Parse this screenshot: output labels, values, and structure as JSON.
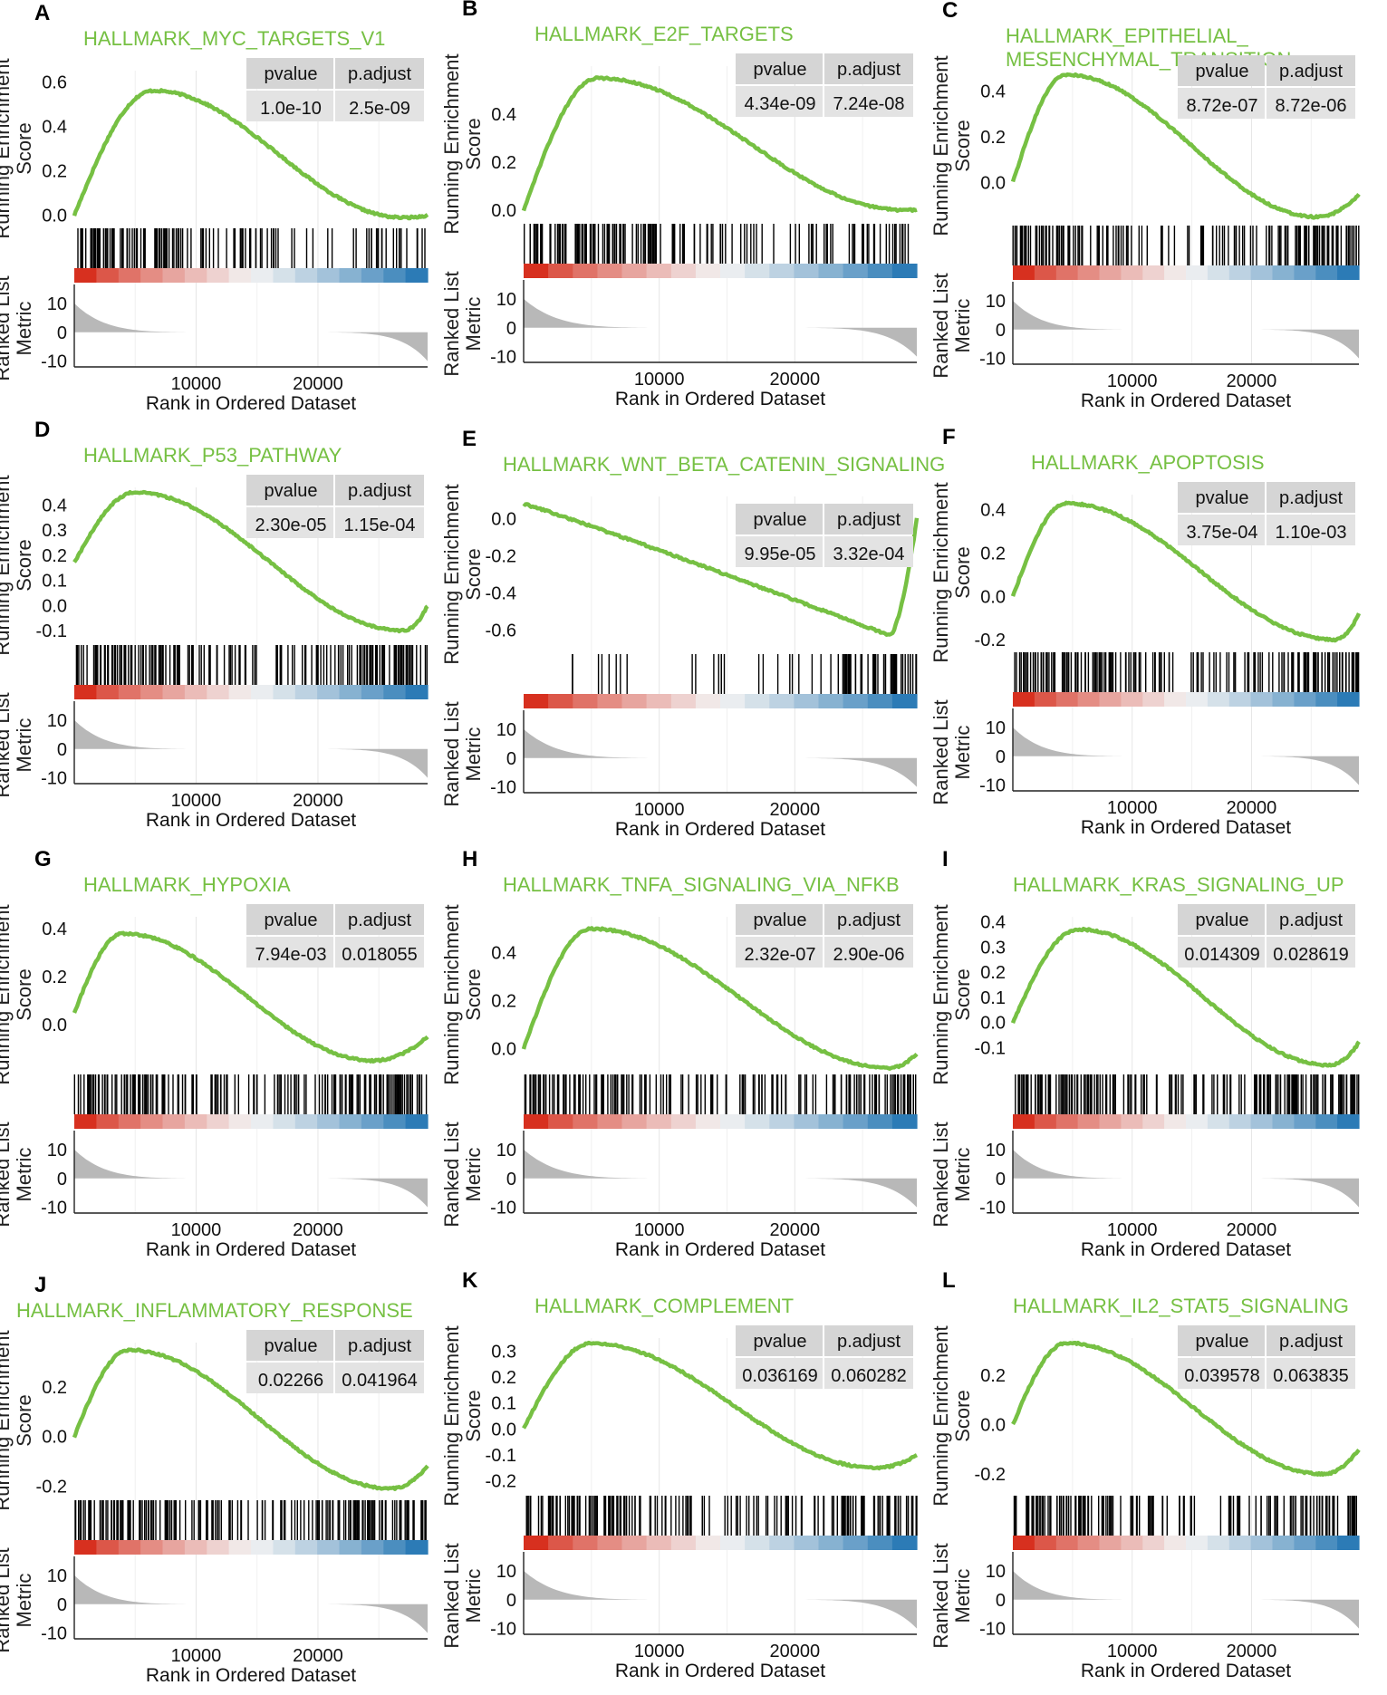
{
  "figure": {
    "x_axis_label": "Rank in Ordered Dataset",
    "y_axis_label_top_line1": "Running Enrichment",
    "y_axis_label_top_line2": "Score",
    "y_axis_label_bottom_line1": "Ranked List",
    "y_axis_label_bottom_line2": "Metric",
    "table_headers": [
      "pvalue",
      "p.adjust"
    ],
    "colors": {
      "curve": "#76c043",
      "title": "#76c043",
      "hit": "#000000",
      "metric_fill": "#b8b8b8",
      "table_bg": "#e3e3e3",
      "heat_red": "#d7301f",
      "heat_white": "#f2f2f2",
      "heat_blue": "#2c7bb6"
    }
  },
  "chart_data": [
    {
      "panel": "A",
      "title": "HALLMARK_MYC_TARGETS_V1",
      "title_line2": "",
      "type": "line",
      "pvalue": "1.0e-10",
      "p_adjust": "2.5e-09",
      "es_ticks": [
        "0.0",
        "0.2",
        "0.4",
        "0.6"
      ],
      "es_tick_values": [
        0.0,
        0.2,
        0.4,
        0.6
      ],
      "es_ylim": [
        -0.05,
        0.65
      ],
      "es_start": 0.0,
      "es_end": 0.0,
      "es_peak": 0.56,
      "peak_rank": 6500,
      "es_min": -0.01,
      "min_rank": 27000,
      "xlim": [
        0,
        29000
      ],
      "x_ticks": [
        "10000",
        "20000"
      ],
      "x_tick_values": [
        10000,
        20000
      ],
      "metric_ticks": [
        "10",
        "0",
        "-10"
      ],
      "metric_tick_values": [
        10,
        0,
        -10
      ],
      "hit_density": [
        "high",
        "high",
        "high",
        "medium",
        "medium",
        "medium",
        "low",
        "low",
        "medium",
        "medium"
      ]
    },
    {
      "panel": "B",
      "title": "HALLMARK_E2F_TARGETS",
      "title_line2": "",
      "type": "line",
      "pvalue": "4.34e-09",
      "p_adjust": "7.24e-08",
      "es_ticks": [
        "0.0",
        "0.2",
        "0.4"
      ],
      "es_tick_values": [
        0.0,
        0.2,
        0.4
      ],
      "es_ylim": [
        -0.05,
        0.6
      ],
      "es_start": 0.0,
      "es_end": 0.0,
      "es_peak": 0.55,
      "peak_rank": 5500,
      "es_min": 0.0,
      "min_rank": 28000,
      "xlim": [
        0,
        29000
      ],
      "x_ticks": [
        "10000",
        "20000"
      ],
      "x_tick_values": [
        10000,
        20000
      ],
      "metric_ticks": [
        "10",
        "0",
        "-10"
      ],
      "metric_tick_values": [
        10,
        0,
        -10
      ],
      "hit_density": [
        "high",
        "high",
        "high",
        "high",
        "medium",
        "medium",
        "low",
        "medium",
        "medium",
        "medium"
      ]
    },
    {
      "panel": "C",
      "title": "HALLMARK_EPITHELIAL_",
      "title_line2": "MESENCHYMAL_TRANSITION",
      "type": "line",
      "pvalue": "8.72e-07",
      "p_adjust": "8.72e-06",
      "es_ticks": [
        "0.0",
        "0.2",
        "0.4"
      ],
      "es_tick_values": [
        0.0,
        0.2,
        0.4
      ],
      "es_ylim": [
        -0.18,
        0.5
      ],
      "es_start": 0.0,
      "es_end": -0.05,
      "es_peak": 0.47,
      "peak_rank": 4500,
      "es_min": -0.15,
      "min_rank": 25500,
      "xlim": [
        0,
        29000
      ],
      "x_ticks": [
        "10000",
        "20000"
      ],
      "x_tick_values": [
        10000,
        20000
      ],
      "metric_ticks": [
        "10",
        "0",
        "-10"
      ],
      "metric_tick_values": [
        10,
        0,
        -10
      ],
      "hit_density": [
        "high",
        "high",
        "medium",
        "medium",
        "low",
        "medium",
        "medium",
        "medium",
        "high",
        "high"
      ]
    },
    {
      "panel": "D",
      "title": "HALLMARK_P53_PATHWAY",
      "title_line2": "",
      "type": "line",
      "pvalue": "2.30e-05",
      "p_adjust": "1.15e-04",
      "es_ticks": [
        "-0.1",
        "0.0",
        "0.1",
        "0.2",
        "0.3",
        "0.4"
      ],
      "es_tick_values": [
        -0.1,
        0.0,
        0.1,
        0.2,
        0.3,
        0.4
      ],
      "es_ylim": [
        -0.15,
        0.47
      ],
      "es_start": 0.17,
      "es_end": 0.0,
      "es_peak": 0.45,
      "peak_rank": 5000,
      "es_min": -0.1,
      "min_rank": 27000,
      "xlim": [
        0,
        29000
      ],
      "x_ticks": [
        "10000",
        "20000"
      ],
      "x_tick_values": [
        10000,
        20000
      ],
      "metric_ticks": [
        "10",
        "0",
        "-10"
      ],
      "metric_tick_values": [
        10,
        0,
        -10
      ],
      "hit_density": [
        "high",
        "high",
        "high",
        "medium",
        "medium",
        "medium",
        "medium",
        "medium",
        "high",
        "high"
      ]
    },
    {
      "panel": "E",
      "title": "HALLMARK_WNT_BETA_CATENIN_SIGNALING",
      "title_line2": "",
      "type": "line",
      "pvalue": "9.95e-05",
      "p_adjust": "3.32e-04",
      "es_ticks": [
        "-0.6",
        "-0.4",
        "-0.2",
        "0.0"
      ],
      "es_tick_values": [
        -0.6,
        -0.4,
        -0.2,
        0.0
      ],
      "es_ylim": [
        -0.72,
        0.12
      ],
      "es_start": 0.08,
      "es_end": 0.0,
      "es_peak": 0.08,
      "peak_rank": 0,
      "es_min": -0.63,
      "min_rank": 27000,
      "xlim": [
        0,
        29000
      ],
      "x_ticks": [
        "10000",
        "20000"
      ],
      "x_tick_values": [
        10000,
        20000
      ],
      "metric_ticks": [
        "10",
        "0",
        "-10"
      ],
      "metric_tick_values": [
        10,
        0,
        -10
      ],
      "hit_density": [
        "none",
        "low",
        "low",
        "none",
        "low",
        "low",
        "low",
        "low",
        "high",
        "high"
      ]
    },
    {
      "panel": "F",
      "title": "HALLMARK_APOPTOSIS",
      "title_line2": "",
      "type": "line",
      "pvalue": "3.75e-04",
      "p_adjust": "1.10e-03",
      "es_ticks": [
        "-0.2",
        "0.0",
        "0.2",
        "0.4"
      ],
      "es_tick_values": [
        -0.2,
        0.0,
        0.2,
        0.4
      ],
      "es_ylim": [
        -0.25,
        0.47
      ],
      "es_start": 0.0,
      "es_end": -0.08,
      "es_peak": 0.43,
      "peak_rank": 4500,
      "es_min": -0.2,
      "min_rank": 27000,
      "xlim": [
        0,
        29000
      ],
      "x_ticks": [
        "10000",
        "20000"
      ],
      "x_tick_values": [
        10000,
        20000
      ],
      "metric_ticks": [
        "10",
        "0",
        "-10"
      ],
      "metric_tick_values": [
        10,
        0,
        -10
      ],
      "hit_density": [
        "high",
        "high",
        "high",
        "medium",
        "medium",
        "medium",
        "medium",
        "medium",
        "high",
        "high"
      ]
    },
    {
      "panel": "G",
      "title": "HALLMARK_HYPOXIA",
      "title_line2": "",
      "type": "line",
      "pvalue": "7.94e-03",
      "p_adjust": "0.018055",
      "es_ticks": [
        "0.0",
        "0.2",
        "0.4"
      ],
      "es_tick_values": [
        0.0,
        0.2,
        0.4
      ],
      "es_ylim": [
        -0.2,
        0.45
      ],
      "es_start": 0.05,
      "es_end": -0.05,
      "es_peak": 0.38,
      "peak_rank": 4000,
      "es_min": -0.15,
      "min_rank": 24500,
      "xlim": [
        0,
        29000
      ],
      "x_ticks": [
        "10000",
        "20000"
      ],
      "x_tick_values": [
        10000,
        20000
      ],
      "metric_ticks": [
        "10",
        "0",
        "-10"
      ],
      "metric_tick_values": [
        10,
        0,
        -10
      ],
      "hit_density": [
        "high",
        "high",
        "high",
        "medium",
        "medium",
        "medium",
        "medium",
        "high",
        "high",
        "high"
      ]
    },
    {
      "panel": "H",
      "title": "HALLMARK_TNFA_SIGNALING_VIA_NFKB",
      "title_line2": "",
      "type": "line",
      "pvalue": "2.32e-07",
      "p_adjust": "2.90e-06",
      "es_ticks": [
        "0.0",
        "0.2",
        "0.4"
      ],
      "es_tick_values": [
        0.0,
        0.2,
        0.4
      ],
      "es_ylim": [
        -0.1,
        0.55
      ],
      "es_start": 0.0,
      "es_end": -0.02,
      "es_peak": 0.5,
      "peak_rank": 5000,
      "es_min": -0.08,
      "min_rank": 27000,
      "xlim": [
        0,
        29000
      ],
      "x_ticks": [
        "10000",
        "20000"
      ],
      "x_tick_values": [
        10000,
        20000
      ],
      "metric_ticks": [
        "10",
        "0",
        "-10"
      ],
      "metric_tick_values": [
        10,
        0,
        -10
      ],
      "hit_density": [
        "high",
        "high",
        "high",
        "medium",
        "medium",
        "medium",
        "medium",
        "medium",
        "high",
        "high"
      ]
    },
    {
      "panel": "I",
      "title": "HALLMARK_KRAS_SIGNALING_UP",
      "title_line2": "",
      "type": "line",
      "pvalue": "0.014309",
      "p_adjust": "0.028619",
      "es_ticks": [
        "-0.1",
        "0.0",
        "0.1",
        "0.2",
        "0.3",
        "0.4"
      ],
      "es_tick_values": [
        -0.1,
        0.0,
        0.1,
        0.2,
        0.3,
        0.4
      ],
      "es_ylim": [
        -0.2,
        0.42
      ],
      "es_start": 0.0,
      "es_end": -0.08,
      "es_peak": 0.37,
      "peak_rank": 5500,
      "es_min": -0.17,
      "min_rank": 26500,
      "xlim": [
        0,
        29000
      ],
      "x_ticks": [
        "10000",
        "20000"
      ],
      "x_tick_values": [
        10000,
        20000
      ],
      "metric_ticks": [
        "10",
        "0",
        "-10"
      ],
      "metric_tick_values": [
        10,
        0,
        -10
      ],
      "hit_density": [
        "high",
        "high",
        "high",
        "medium",
        "medium",
        "medium",
        "medium",
        "high",
        "high",
        "high"
      ]
    },
    {
      "panel": "J",
      "title": "HALLMARK_INFLAMMATORY_RESPONSE",
      "title_line2": "",
      "type": "line",
      "pvalue": "0.02266",
      "p_adjust": "0.041964",
      "es_ticks": [
        "-0.2",
        "0.0",
        "0.2"
      ],
      "es_tick_values": [
        -0.2,
        0.0,
        0.2
      ],
      "es_ylim": [
        -0.25,
        0.38
      ],
      "es_start": 0.0,
      "es_end": -0.12,
      "es_peak": 0.35,
      "peak_rank": 4500,
      "es_min": -0.21,
      "min_rank": 26000,
      "xlim": [
        0,
        29000
      ],
      "x_ticks": [
        "10000",
        "20000"
      ],
      "x_tick_values": [
        10000,
        20000
      ],
      "metric_ticks": [
        "10",
        "0",
        "-10"
      ],
      "metric_tick_values": [
        10,
        0,
        -10
      ],
      "hit_density": [
        "high",
        "high",
        "high",
        "medium",
        "medium",
        "medium",
        "medium",
        "high",
        "high",
        "high"
      ]
    },
    {
      "panel": "K",
      "title": "HALLMARK_COMPLEMENT",
      "title_line2": "",
      "type": "line",
      "pvalue": "0.036169",
      "p_adjust": "0.060282",
      "es_ticks": [
        "-0.2",
        "-0.1",
        "0.0",
        "0.1",
        "0.2",
        "0.3"
      ],
      "es_tick_values": [
        -0.2,
        -0.1,
        0.0,
        0.1,
        0.2,
        0.3
      ],
      "es_ylim": [
        -0.25,
        0.35
      ],
      "es_start": 0.0,
      "es_end": -0.1,
      "es_peak": 0.33,
      "peak_rank": 5000,
      "es_min": -0.15,
      "min_rank": 26000,
      "xlim": [
        0,
        29000
      ],
      "x_ticks": [
        "10000",
        "20000"
      ],
      "x_tick_values": [
        10000,
        20000
      ],
      "metric_ticks": [
        "10",
        "0",
        "-10"
      ],
      "metric_tick_values": [
        10,
        0,
        -10
      ],
      "hit_density": [
        "high",
        "high",
        "high",
        "medium",
        "medium",
        "medium",
        "medium",
        "medium",
        "high",
        "high"
      ]
    },
    {
      "panel": "L",
      "title": "HALLMARK_IL2_STAT5_SIGNALING",
      "title_line2": "",
      "type": "line",
      "pvalue": "0.039578",
      "p_adjust": "0.063835",
      "es_ticks": [
        "-0.2",
        "0.0",
        "0.2"
      ],
      "es_tick_values": [
        -0.2,
        0.0,
        0.2
      ],
      "es_ylim": [
        -0.28,
        0.35
      ],
      "es_start": 0.0,
      "es_end": -0.1,
      "es_peak": 0.33,
      "peak_rank": 4500,
      "es_min": -0.2,
      "min_rank": 26000,
      "xlim": [
        0,
        29000
      ],
      "x_ticks": [
        "10000",
        "20000"
      ],
      "x_tick_values": [
        10000,
        20000
      ],
      "metric_ticks": [
        "10",
        "0",
        "-10"
      ],
      "metric_tick_values": [
        10,
        0,
        -10
      ],
      "hit_density": [
        "high",
        "high",
        "high",
        "medium",
        "medium",
        "low",
        "medium",
        "medium",
        "high",
        "high"
      ]
    }
  ]
}
